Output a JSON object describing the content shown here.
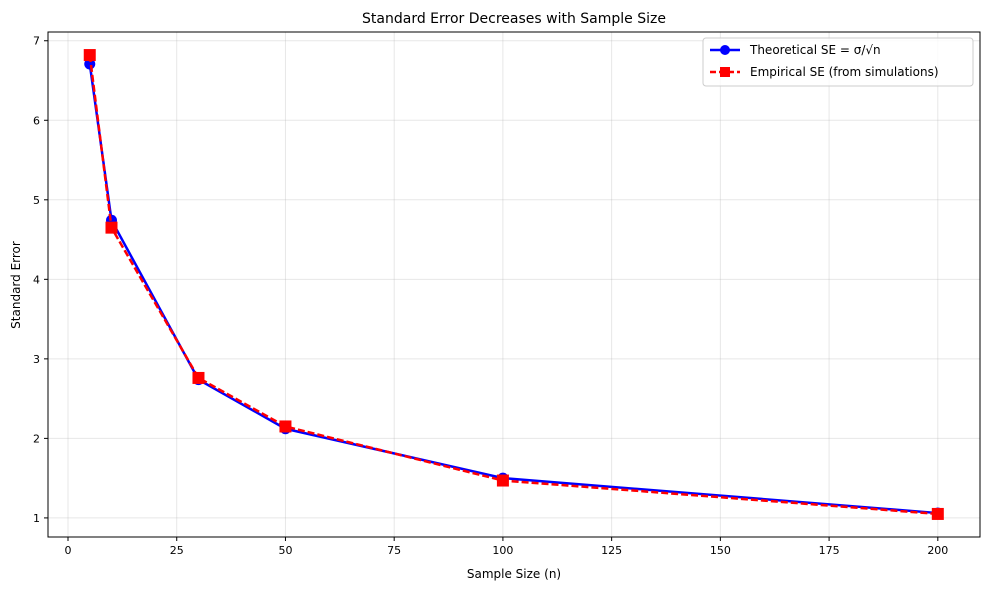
{
  "chart_data": {
    "type": "line",
    "title": "Standard Error Decreases with Sample Size",
    "xlabel": "Sample Size (n)",
    "ylabel": "Standard Error",
    "xlim": [
      -4.6,
      209.7
    ],
    "ylim": [
      0.76,
      7.11
    ],
    "xticks": [
      0,
      25,
      50,
      75,
      100,
      125,
      150,
      175,
      200
    ],
    "yticks": [
      1,
      2,
      3,
      4,
      5,
      6,
      7
    ],
    "grid": true,
    "legend_position": "top-right",
    "x": [
      5,
      10,
      30,
      50,
      100,
      200
    ],
    "series": [
      {
        "name": "Theoretical SE = σ/√n",
        "color": "#0000ff",
        "marker": "circle",
        "linestyle": "solid",
        "values": [
          6.708,
          4.743,
          2.739,
          2.121,
          1.5,
          1.061
        ]
      },
      {
        "name": "Empirical SE (from simulations)",
        "color": "#ff0000",
        "marker": "square",
        "linestyle": "dashed",
        "values": [
          6.82,
          4.65,
          2.76,
          2.15,
          1.47,
          1.05
        ]
      }
    ]
  }
}
